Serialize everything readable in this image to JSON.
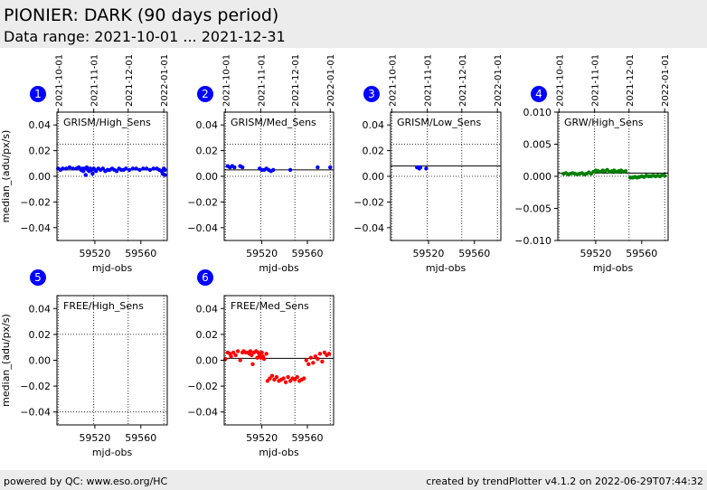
{
  "header": {
    "title": "PIONIER: DARK (90 days period)",
    "subtitle": "Data range: 2021-10-01 ... 2021-12-31"
  },
  "footer": {
    "left": "powered by QC: www.eso.org/HC",
    "right": "created by trendPlotter v4.1.2 on 2022-06-29T07:44:32"
  },
  "colors": {
    "badge": "#0000ff",
    "blue": "#0000ff",
    "green": "#008000",
    "red": "#ff0000",
    "line": "#000000"
  },
  "chart_data": [
    {
      "type": "scatter",
      "panel": "1",
      "label": "GRISM/High_Sens",
      "xlabel": "mjd-obs",
      "ylabel": "median_(adu/px/s)",
      "xlim": [
        59487,
        59583
      ],
      "ylim": [
        -0.05,
        0.05
      ],
      "xticks": [
        59520,
        59560
      ],
      "yticks": [
        0.04,
        0.02,
        0.0,
        -0.02,
        -0.04
      ],
      "top_ticks": [
        "2021-10-01",
        "2021-11-01",
        "2021-12-01",
        "2022-01-01"
      ],
      "hlines": [
        {
          "y": 0.025,
          "style": "dotted"
        },
        {
          "y": 0.005,
          "style": "solid"
        },
        {
          "y": 0.0,
          "style": "dotted"
        }
      ],
      "color": "blue",
      "x": [
        59488,
        59490,
        59492,
        59495,
        59498,
        59501,
        59504,
        59506,
        59508,
        59509,
        59510,
        59511,
        59512,
        59513,
        59514,
        59515,
        59516,
        59517,
        59518,
        59519,
        59520,
        59521,
        59523,
        59525,
        59527,
        59529,
        59531,
        59533,
        59535,
        59537,
        59539,
        59541,
        59543,
        59545,
        59547,
        59550,
        59553,
        59556,
        59559,
        59562,
        59565,
        59568,
        59571,
        59574,
        59576,
        59578,
        59579,
        59580,
        59581,
        59581
      ],
      "y": [
        0.006,
        0.005,
        0.006,
        0.006,
        0.007,
        0.006,
        0.006,
        0.007,
        0.005,
        0.006,
        0.004,
        0.006,
        0.001,
        0.007,
        0.005,
        0.004,
        0.006,
        0.005,
        0.002,
        0.006,
        0.005,
        0.004,
        0.006,
        0.005,
        0.006,
        0.004,
        0.005,
        0.005,
        0.006,
        0.005,
        0.004,
        0.006,
        0.005,
        0.005,
        0.006,
        0.005,
        0.006,
        0.006,
        0.005,
        0.006,
        0.006,
        0.005,
        0.006,
        0.006,
        0.005,
        0.004,
        0.002,
        0.006,
        0.005,
        0.001
      ]
    },
    {
      "type": "scatter",
      "panel": "2",
      "label": "GRISM/Med_Sens",
      "xlabel": "mjd-obs",
      "ylabel": "",
      "xlim": [
        59487,
        59583
      ],
      "ylim": [
        -0.05,
        0.05
      ],
      "xticks": [
        59520,
        59560
      ],
      "yticks": [
        0.04,
        0.02,
        0.0,
        -0.02,
        -0.04
      ],
      "top_ticks": [
        "2021-10-01",
        "2021-11-01",
        "2021-12-01",
        "2022-01-01"
      ],
      "hlines": [
        {
          "y": 0.025,
          "style": "dotted"
        },
        {
          "y": 0.005,
          "style": "solid"
        },
        {
          "y": 0.0,
          "style": "dotted"
        }
      ],
      "color": "blue",
      "x": [
        59490,
        59492,
        59494,
        59496,
        59501,
        59503,
        59518,
        59520,
        59522,
        59524,
        59526,
        59528,
        59530,
        59545,
        59569,
        59580
      ],
      "y": [
        0.008,
        0.007,
        0.008,
        0.007,
        0.008,
        0.007,
        0.006,
        0.005,
        0.005,
        0.006,
        0.005,
        0.004,
        0.005,
        0.005,
        0.007,
        0.007
      ]
    },
    {
      "type": "scatter",
      "panel": "3",
      "label": "GRISM/Low_Sens",
      "xlabel": "mjd-obs",
      "ylabel": "",
      "xlim": [
        59487,
        59583
      ],
      "ylim": [
        -0.05,
        0.05
      ],
      "xticks": [
        59520,
        59560
      ],
      "yticks": [
        0.04,
        0.02,
        0.0,
        -0.02,
        -0.04
      ],
      "top_ticks": [
        "2021-10-01",
        "2021-11-01",
        "2021-12-01",
        "2022-01-01"
      ],
      "hlines": [
        {
          "y": 0.025,
          "style": "dotted"
        },
        {
          "y": 0.008,
          "style": "solid"
        },
        {
          "y": 0.0,
          "style": "dotted"
        }
      ],
      "color": "blue",
      "x": [
        59510,
        59511,
        59512,
        59513,
        59518
      ],
      "y": [
        0.007,
        0.007,
        0.006,
        0.007,
        0.006
      ]
    },
    {
      "type": "scatter",
      "panel": "4",
      "label": "GRW/High_Sens",
      "xlabel": "mjd-obs",
      "ylabel": "",
      "xlim": [
        59487,
        59583
      ],
      "ylim": [
        -0.01,
        0.01
      ],
      "xticks": [
        59520,
        59560
      ],
      "yticks": [
        0.01,
        0.005,
        0.0,
        -0.005,
        -0.01
      ],
      "top_ticks": [
        "2021-10-01",
        "2021-11-01",
        "2021-12-01",
        "2022-01-01"
      ],
      "hlines": [
        {
          "y": 0.0005,
          "style": "solid"
        },
        {
          "y": 0.0,
          "style": "dotted"
        }
      ],
      "color": "green",
      "x": [
        59492,
        59494,
        59496,
        59498,
        59500,
        59502,
        59504,
        59506,
        59508,
        59510,
        59512,
        59514,
        59516,
        59518,
        59520,
        59522,
        59524,
        59526,
        59528,
        59530,
        59532,
        59534,
        59536,
        59538,
        59540,
        59542,
        59544,
        59546,
        59550,
        59552,
        59554,
        59556,
        59558,
        59560,
        59562,
        59564,
        59566,
        59568,
        59570,
        59572,
        59574,
        59576,
        59578,
        59580
      ],
      "y": [
        0.0004,
        0.0005,
        0.0003,
        0.0004,
        0.0005,
        0.0004,
        0.0003,
        0.0004,
        0.0005,
        0.0003,
        0.0004,
        0.0006,
        0.0004,
        0.0007,
        0.0009,
        0.0008,
        0.0007,
        0.0009,
        0.0008,
        0.001,
        0.0007,
        0.0008,
        0.0009,
        0.0007,
        0.0008,
        0.0009,
        0.0007,
        0.0008,
        -0.0002,
        -0.0002,
        -0.0001,
        -0.0002,
        -0.0001,
        0.0,
        -0.0001,
        0.0001,
        0.0,
        0.0,
        0.0001,
        0.0,
        0.0001,
        0.0,
        0.0002,
        0.0001
      ]
    },
    {
      "type": "scatter",
      "panel": "5",
      "label": "FREE/High_Sens",
      "xlabel": "mjd-obs",
      "ylabel": "median_(adu/px/s)",
      "xlim": [
        59487,
        59583
      ],
      "ylim": [
        -0.05,
        0.05
      ],
      "xticks": [
        59520,
        59560
      ],
      "yticks": [
        0.04,
        0.02,
        0.0,
        -0.02,
        -0.04
      ],
      "hlines": [
        {
          "y": 0.02,
          "style": "dotted"
        },
        {
          "y": -0.04,
          "style": "dotted"
        }
      ],
      "color": "blue",
      "x": [],
      "y": []
    },
    {
      "type": "scatter",
      "panel": "6",
      "label": "FREE/Med_Sens",
      "xlabel": "mjd-obs",
      "ylabel": "",
      "xlim": [
        59487,
        59583
      ],
      "ylim": [
        -0.05,
        0.05
      ],
      "xticks": [
        59520,
        59560
      ],
      "yticks": [
        0.04,
        0.02,
        0.0,
        -0.02,
        -0.04
      ],
      "hlines": [
        {
          "y": 0.0015,
          "style": "solid"
        }
      ],
      "color": "red",
      "x": [
        59488,
        59490,
        59492,
        59493,
        59495,
        59497,
        59499,
        59501,
        59503,
        59504,
        59506,
        59508,
        59509,
        59510,
        59511,
        59512,
        59513,
        59515,
        59516,
        59517,
        59518,
        59519,
        59520,
        59521,
        59522,
        59524,
        59525,
        59527,
        59529,
        59531,
        59533,
        59535,
        59537,
        59539,
        59541,
        59543,
        59545,
        59547,
        59549,
        59551,
        59553,
        59555,
        59557,
        59559,
        59561,
        59563,
        59565,
        59567,
        59569,
        59571,
        59573,
        59575,
        59577,
        59579
      ],
      "y": [
        0.001,
        0.006,
        0.005,
        0.003,
        0.006,
        0.004,
        0.007,
        0.0,
        0.006,
        0.007,
        0.006,
        0.006,
        0.005,
        0.007,
        0.004,
        -0.003,
        0.006,
        0.007,
        0.002,
        0.006,
        0.004,
        0.002,
        0.006,
        0.003,
        0.001,
        0.005,
        -0.016,
        -0.014,
        -0.012,
        -0.015,
        -0.013,
        -0.016,
        -0.015,
        -0.014,
        -0.017,
        -0.013,
        -0.016,
        -0.014,
        -0.015,
        -0.013,
        -0.016,
        -0.015,
        -0.014,
        0.0,
        -0.003,
        0.002,
        -0.002,
        0.003,
        0.001,
        0.005,
        -0.001,
        0.006,
        0.004,
        0.005
      ]
    }
  ]
}
